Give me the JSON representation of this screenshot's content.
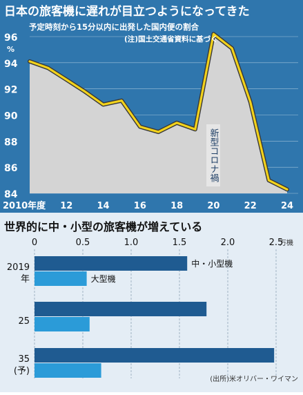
{
  "chart_data": [
    {
      "type": "line",
      "title": "日本の旅客機に遅れが目立つようになってきた",
      "subtitle": "予定時刻から15分以内に出発した国内便の割合",
      "note": "(注)国土交通省資料に基づく",
      "ylabel": "%",
      "ylim": [
        84,
        96
      ],
      "y_ticks": [
        "96",
        "94",
        "92",
        "90",
        "88",
        "86",
        "84"
      ],
      "xlim": [
        2010,
        2024
      ],
      "x_ticks": [
        "2010年度",
        "12",
        "14",
        "16",
        "18",
        "20",
        "22",
        "24"
      ],
      "x_tick_values": [
        2010,
        2012,
        2014,
        2016,
        2018,
        2020,
        2022,
        2024
      ],
      "annotation": "新型コロナ禍",
      "series": [
        {
          "x": [
            2010,
            2011,
            2012,
            2013,
            2014,
            2015,
            2016,
            2017,
            2018,
            2019,
            2020,
            2021,
            2022,
            2023,
            2024
          ],
          "y": [
            94.1,
            93.6,
            92.7,
            91.8,
            90.8,
            91.1,
            89.1,
            88.7,
            89.4,
            88.9,
            96.2,
            95.1,
            91.0,
            85.0,
            84.3
          ]
        }
      ],
      "colors": {
        "background": "#2f76ad",
        "line": "#f2d21b",
        "line_outline": "#383838",
        "fill": "#d4d4d4"
      }
    },
    {
      "type": "bar",
      "orientation": "horizontal",
      "title": "世界的に中・小型の旅客機が増えている",
      "unit": "万機",
      "xlim": [
        0,
        2.5
      ],
      "x_ticks": [
        "0",
        "0.5",
        "1.0",
        "1.5",
        "2.0",
        "2.5"
      ],
      "x_tick_values": [
        0,
        0.5,
        1.0,
        1.5,
        2.0,
        2.5
      ],
      "categories": [
        {
          "line1": "2019",
          "line2": "年"
        },
        {
          "line1": "25",
          "line2": ""
        },
        {
          "line1": "35",
          "line2": "(予)"
        }
      ],
      "series": [
        {
          "name": "中・小型機",
          "values": [
            1.58,
            1.78,
            2.48
          ]
        },
        {
          "name": "大型機",
          "values": [
            0.54,
            0.57,
            0.69
          ]
        }
      ],
      "source": "(出所)米オリバー・ワイマン",
      "colors": {
        "large_bars": "#1f5b91",
        "small_bars": "#2b9bd8",
        "background": "#e4edf5"
      }
    }
  ]
}
